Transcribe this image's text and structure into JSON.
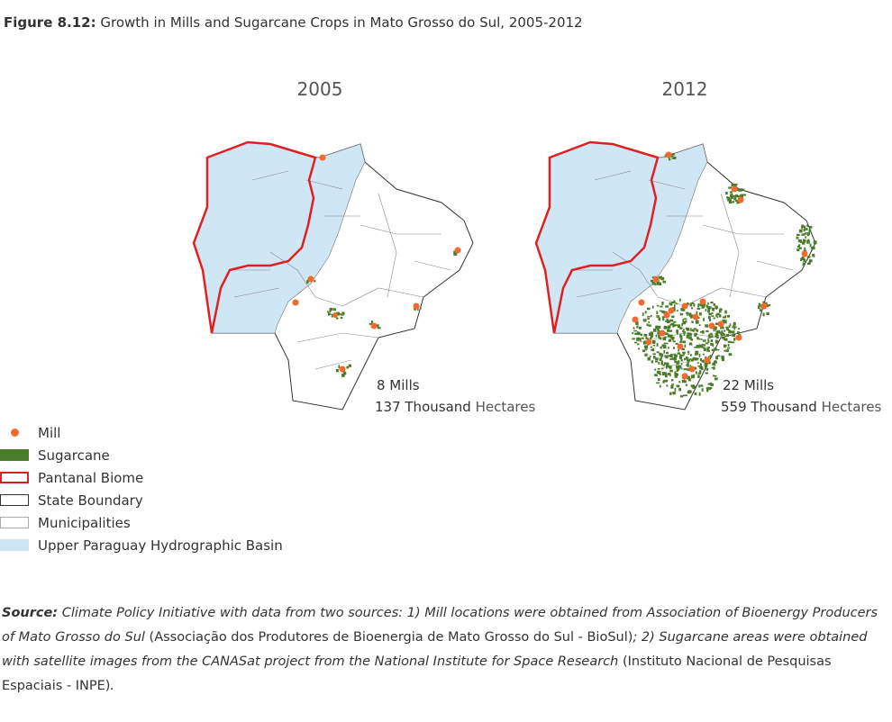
{
  "figure": {
    "label": "Figure 8.12:",
    "title": "Growth in Mills and Sugarcane Crops in Mato Grosso do Sul, 2005-2012"
  },
  "maps": [
    {
      "year": "2005",
      "mills": "8 Mills",
      "area": "137 Thousand",
      "unit": "Hectares"
    },
    {
      "year": "2012",
      "mills": "22 Mills",
      "area": "559 Thousand",
      "unit": "Hectares"
    }
  ],
  "legend": [
    {
      "label": "Mill"
    },
    {
      "label": "Sugarcane"
    },
    {
      "label": "Pantanal Biome"
    },
    {
      "label": "State Boundary"
    },
    {
      "label": "Municipalities"
    },
    {
      "label": "Upper Paraguay Hydrographic Basin"
    }
  ],
  "source": [
    {
      "text": "Source:",
      "style": "bold-italic"
    },
    {
      "text": " Climate Policy Initiative with data from two sources: 1) Mill locations were obtained from Association of Bioenergy Producers of Mato Grosso do Sul ",
      "style": "italic"
    },
    {
      "text": "(Associação dos Produtores de Bioenergia de Mato Grosso do Sul - BioSul)",
      "style": "normal"
    },
    {
      "text": "; 2) Sugarcane areas were obtained with satellite images from the CANASat project from the National Institute for Space Research ",
      "style": "italic"
    },
    {
      "text": "(Instituto Nacional de Pesquisas Espaciais - INPE)",
      "style": "normal"
    },
    {
      "text": ".",
      "style": "italic"
    }
  ]
}
